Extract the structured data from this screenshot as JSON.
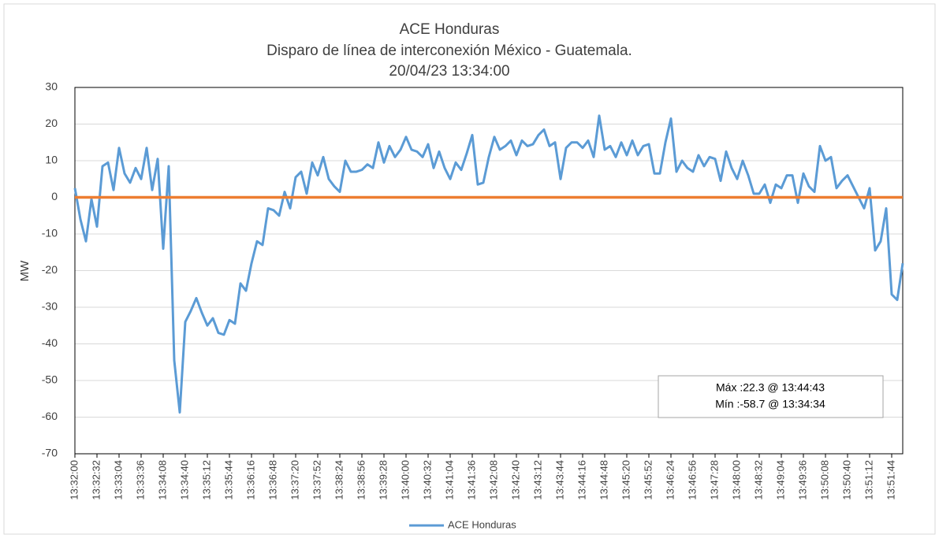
{
  "chart_data": {
    "type": "line",
    "title": "ACE Honduras",
    "subtitle": [
      "Disparo de línea de interconexión México - Guatemala.",
      "20/04/23 13:34:00"
    ],
    "y_label": "MW",
    "categories": [
      "13:32:00",
      null,
      null,
      null,
      "13:32:32",
      null,
      null,
      null,
      "13:33:04",
      null,
      null,
      null,
      "13:33:36",
      null,
      null,
      null,
      "13:34:08",
      null,
      null,
      null,
      "13:34:40",
      null,
      null,
      null,
      "13:35:12",
      null,
      null,
      null,
      "13:35:44",
      null,
      null,
      null,
      "13:36:16",
      null,
      null,
      null,
      "13:36:48",
      null,
      null,
      null,
      "13:37:20",
      null,
      null,
      null,
      "13:37:52",
      null,
      null,
      null,
      "13:38:24",
      null,
      null,
      null,
      "13:38:56",
      null,
      null,
      null,
      "13:39:28",
      null,
      null,
      null,
      "13:40:00",
      null,
      null,
      null,
      "13:40:32",
      null,
      null,
      null,
      "13:41:04",
      null,
      null,
      null,
      "13:41:36",
      null,
      null,
      null,
      "13:42:08",
      null,
      null,
      null,
      "13:42:40",
      null,
      null,
      null,
      "13:43:12",
      null,
      null,
      null,
      "13:43:44",
      null,
      null,
      null,
      "13:44:16",
      null,
      null,
      null,
      "13:44:48",
      null,
      null,
      null,
      "13:45:20",
      null,
      null,
      null,
      "13:45:52",
      null,
      null,
      null,
      "13:46:24",
      null,
      null,
      null,
      "13:46:56",
      null,
      null,
      null,
      "13:47:28",
      null,
      null,
      null,
      "13:48:00",
      null,
      null,
      null,
      "13:48:32",
      null,
      null,
      null,
      "13:49:04",
      null,
      null,
      null,
      "13:49:36",
      null,
      null,
      null,
      "13:50:08",
      null,
      null,
      null,
      "13:50:40",
      null,
      null,
      null,
      "13:51:12",
      null,
      null,
      null,
      "13:51:44",
      null,
      null
    ],
    "series": [
      {
        "name": "ACE Honduras",
        "color": "#5b9bd5",
        "values": [
          2.5,
          -6,
          -12,
          -0.5,
          -8,
          8.5,
          9.5,
          2,
          13.5,
          6.5,
          4,
          8,
          5,
          13.5,
          2,
          10.5,
          -14,
          8.5,
          -44.5,
          -58.7,
          -34,
          -31,
          -27.5,
          -31.5,
          -35,
          -33,
          -37,
          -37.5,
          -33.5,
          -34.5,
          -23.5,
          -25.5,
          -18,
          -12,
          -13,
          -3,
          -3.5,
          -5,
          1.5,
          -3,
          5.5,
          7,
          1,
          9.5,
          6,
          11,
          5,
          3,
          1.5,
          10,
          7,
          7,
          7.5,
          9,
          8,
          15,
          9.5,
          14,
          11,
          13,
          16.5,
          13,
          12.5,
          11,
          14.5,
          8,
          12.5,
          8,
          5,
          9.5,
          7.5,
          12,
          17,
          3.5,
          4,
          11,
          16.5,
          13,
          14,
          15.5,
          11.5,
          15.5,
          14,
          14.5,
          17,
          18.5,
          14,
          15,
          5,
          13.5,
          15,
          15,
          13.5,
          15.5,
          11,
          22.3,
          13,
          14,
          11,
          15,
          11.5,
          15.5,
          11.5,
          14,
          14.5,
          6.5,
          6.5,
          15,
          21.5,
          7,
          10,
          8,
          7,
          11.5,
          8.5,
          11,
          10.5,
          4.5,
          12.5,
          8,
          5,
          10,
          6,
          1,
          1,
          3.5,
          -1.5,
          3.5,
          2.5,
          6,
          6,
          -1.5,
          6.5,
          3,
          1.5,
          14,
          10,
          11,
          2.5,
          4.5,
          6,
          3,
          0,
          -3,
          2.5,
          -14.5,
          -12,
          -3,
          -26.5,
          -28,
          -18
        ]
      }
    ],
    "reference_line": {
      "value": 0,
      "color": "#ed7d31"
    },
    "ylim": [
      -70,
      30
    ],
    "yticks": [
      -70,
      -60,
      -50,
      -40,
      -30,
      -20,
      -10,
      0,
      10,
      20,
      30
    ],
    "grid": true,
    "legend": "bottom",
    "annotation": [
      "Máx :22.3 @ 13:44:43",
      "Mín :-58.7 @ 13:34:34"
    ]
  }
}
